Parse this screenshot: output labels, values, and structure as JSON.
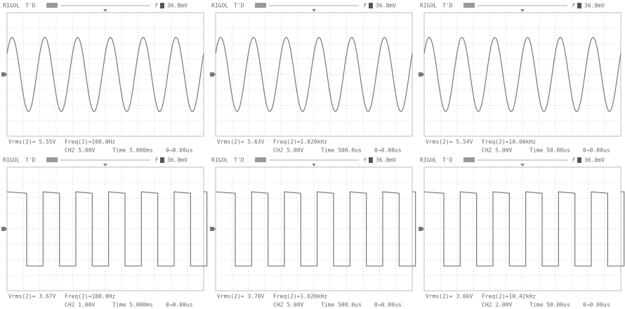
{
  "panels": [
    {
      "header": {
        "brand": "RIGOL",
        "status": "T'D",
        "trigger_level": "36.8mV"
      },
      "measurements": {
        "vrms": "Vrms(2)= 5.55V",
        "freq": "Freq(2)=100.0Hz"
      },
      "scale": {
        "channel": "CH2 5.00V",
        "time": "Time 5.000ms",
        "offset": "0→0.00us"
      }
    },
    {
      "header": {
        "brand": "RIGOL",
        "status": "T'D",
        "trigger_level": "36.8mV"
      },
      "measurements": {
        "vrms": "Vrms(2)= 5.63V",
        "freq": "Freq(2)=1.020kHz"
      },
      "scale": {
        "channel": "CH2 5.00V",
        "time": "Time 500.0us",
        "offset": "0→0.00us"
      }
    },
    {
      "header": {
        "brand": "RIGOL",
        "status": "T'D",
        "trigger_level": "36.8mV"
      },
      "measurements": {
        "vrms": "Vrms(2)= 5.54V",
        "freq": "Freq(2)=10.00kHz"
      },
      "scale": {
        "channel": "CH2 5.00V",
        "time": "Time 50.00us",
        "offset": "0→0.00us"
      }
    },
    {
      "header": {
        "brand": "RIGOL",
        "status": "T'D",
        "trigger_level": "36.8mV"
      },
      "measurements": {
        "vrms": "Vrms(2)= 3.67V",
        "freq": "Freq(2)=100.0Hz"
      },
      "scale": {
        "channel": "CH2 1.00V",
        "time": "Time 5.000ms",
        "offset": "0→0.00us"
      }
    },
    {
      "header": {
        "brand": "RIGOL",
        "status": "T'D",
        "trigger_level": "36.8mV"
      },
      "measurements": {
        "vrms": "Vrms(2)= 3.70V",
        "freq": "Freq(2)=1.020kHz"
      },
      "scale": {
        "channel": "CH2 5.00V",
        "time": "Time 500.0us",
        "offset": "0→0.00us"
      }
    },
    {
      "header": {
        "brand": "RIGOL",
        "status": "T'D",
        "trigger_level": "36.8mV"
      },
      "measurements": {
        "vrms": "Vrms(2)= 3.66V",
        "freq": "Freq(2)=10.42kHz"
      },
      "scale": {
        "channel": "CH2 2.00V",
        "time": "Time 50.00us",
        "offset": "0→0.00us"
      }
    }
  ]
}
